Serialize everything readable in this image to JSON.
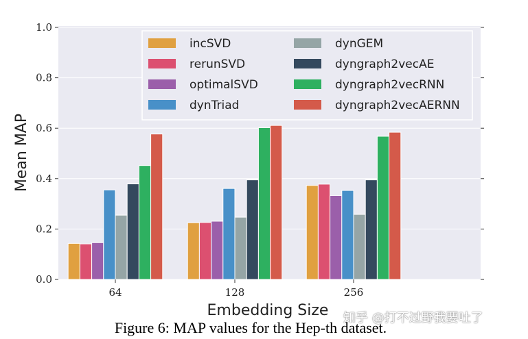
{
  "chart_data": {
    "type": "bar",
    "xlabel": "Embedding Size",
    "ylabel": "Mean MAP",
    "ylim": [
      0,
      1.0
    ],
    "yticks": [
      "0.0",
      "0.2",
      "0.4",
      "0.6",
      "0.8",
      "1.0"
    ],
    "grid": true,
    "legend_placement": "top-right",
    "categories": [
      "64",
      "128",
      "256"
    ],
    "series": [
      {
        "name": "incSVD",
        "color": "#e0a040",
        "values": [
          0.143,
          0.225,
          0.373
        ]
      },
      {
        "name": "rerunSVD",
        "color": "#dc5070",
        "values": [
          0.141,
          0.226,
          0.378
        ]
      },
      {
        "name": "optimalSVD",
        "color": "#9b5faa",
        "values": [
          0.146,
          0.231,
          0.333
        ]
      },
      {
        "name": "dynTriad",
        "color": "#4890c8",
        "values": [
          0.355,
          0.361,
          0.353
        ]
      },
      {
        "name": "dynGEM",
        "color": "#95a5a6",
        "values": [
          0.255,
          0.247,
          0.258
        ]
      },
      {
        "name": "dyngraph2vecAE",
        "color": "#34495e",
        "values": [
          0.379,
          0.395,
          0.395
        ]
      },
      {
        "name": "dyngraph2vecRNN",
        "color": "#2eb060",
        "values": [
          0.452,
          0.602,
          0.568
        ]
      },
      {
        "name": "dyngraph2vecAERNN",
        "color": "#d45a4a",
        "values": [
          0.577,
          0.611,
          0.584
        ]
      }
    ]
  },
  "caption": "Figure 6: MAP values for the Hep-th dataset.",
  "watermark": "知乎 @打不过野我要吐了"
}
